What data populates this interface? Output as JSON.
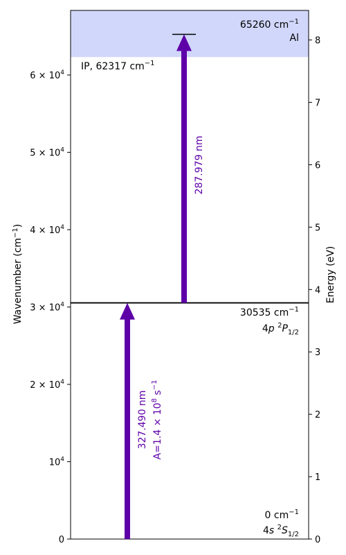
{
  "chart_data": {
    "type": "energy-level-diagram",
    "element": "Al",
    "y_left_label_main": "Wavenumber (cm",
    "y_left_label_sup": "−1",
    "y_left_label_end": ")",
    "y_right_label": "Energy (eV)",
    "ylim_cm": [
      0,
      68350
    ],
    "y_left_ticks": [
      {
        "value": 0,
        "base": "0",
        "exp": ""
      },
      {
        "value": 10000,
        "base": "10",
        "exp": "4"
      },
      {
        "value": 20000,
        "base": "2 × 10",
        "exp": "4"
      },
      {
        "value": 30000,
        "base": "3 × 10",
        "exp": "4"
      },
      {
        "value": 40000,
        "base": "4 × 10",
        "exp": "4"
      },
      {
        "value": 50000,
        "base": "5 × 10",
        "exp": "4"
      },
      {
        "value": 60000,
        "base": "6 × 10",
        "exp": "4"
      }
    ],
    "y_right_ticks_ev": [
      0,
      1,
      2,
      3,
      4,
      5,
      6,
      7,
      8
    ],
    "ionization": {
      "value_cm": 62317,
      "label": "IP, 62317 cm",
      "label_sup": "−1",
      "band_color": "#d1d7fa"
    },
    "top_level": {
      "value_cm": 65260,
      "label": "65260 cm",
      "label_sup": "−1",
      "element_label": "Al"
    },
    "levels": [
      {
        "value_cm": 30535,
        "energy_label": "30535 cm",
        "energy_sup": "−1",
        "term_a": "4",
        "term_b": "p",
        "term_c": " ",
        "term_sup": "2",
        "term_d": "P",
        "term_sub": "1/2"
      },
      {
        "value_cm": 0,
        "energy_label": "0 cm",
        "energy_sup": "−1",
        "term_a": "4",
        "term_b": "s",
        "term_c": " ",
        "term_sup": "2",
        "term_d": "S",
        "term_sub": "1/2"
      }
    ],
    "transitions": [
      {
        "from_cm": 0,
        "to_cm": 30535,
        "wavelength": "327.490 nm",
        "rate_prefix": "A=1.4 × 10",
        "rate_exp": "8",
        "rate_unit": " s",
        "rate_unit_sup": "−1",
        "color": "#5e00a8"
      },
      {
        "from_cm": 30535,
        "to_cm": 65260,
        "wavelength": "287.979 nm",
        "color": "#5e00a8"
      }
    ]
  }
}
